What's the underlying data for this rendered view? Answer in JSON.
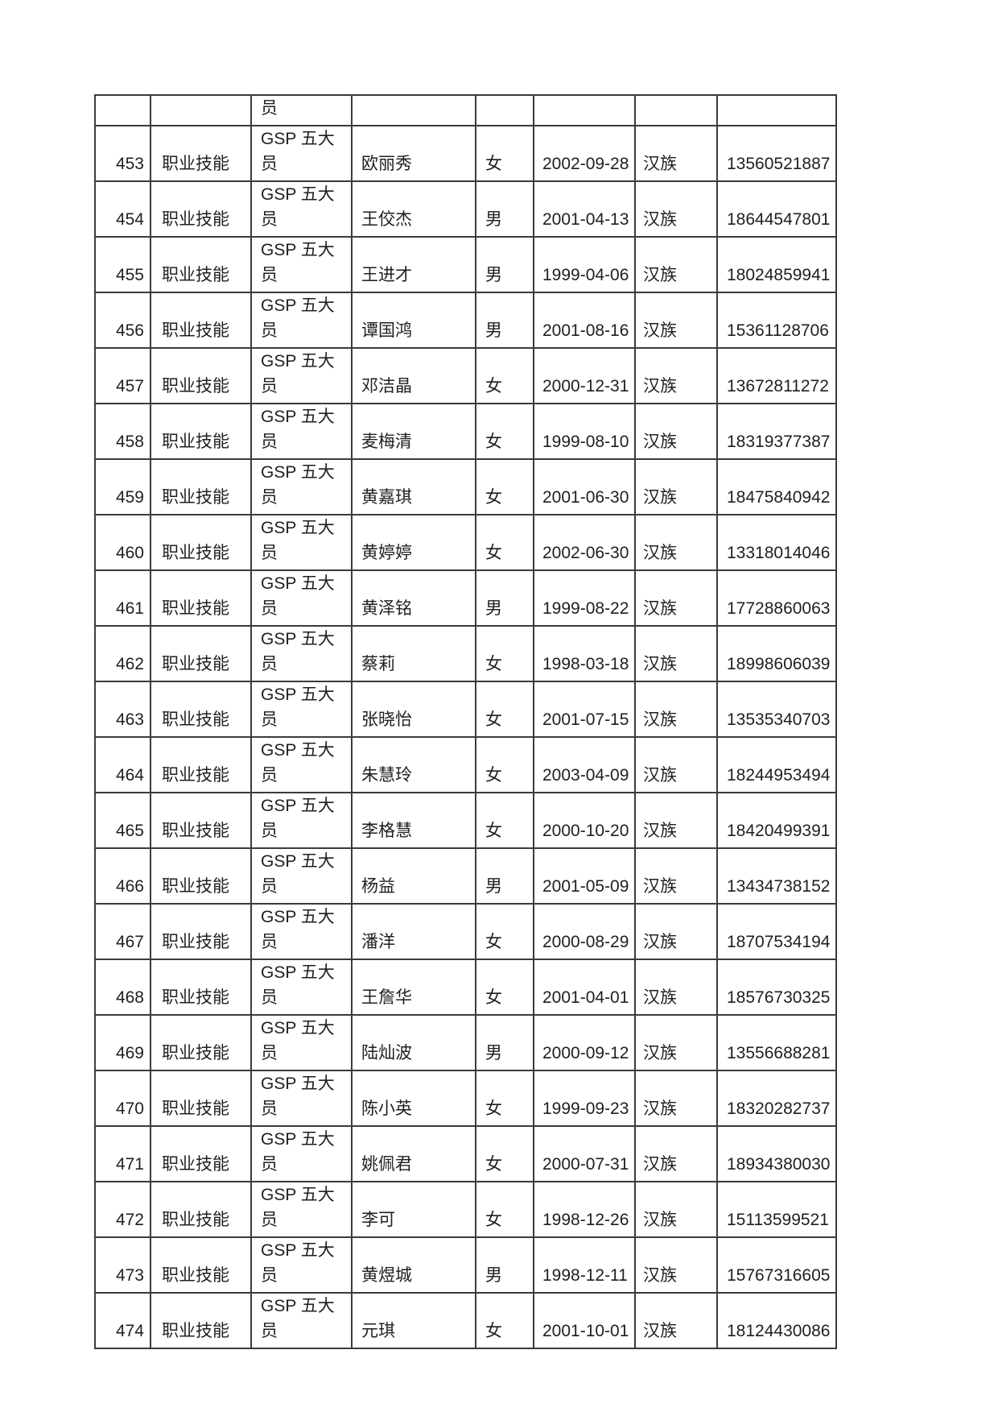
{
  "document": {
    "background_color": "#ffffff",
    "table_border_color": "#3b3b3b",
    "text_color": "#1f1f1f"
  },
  "table": {
    "carryover_row": {
      "cert_fragment": "员"
    },
    "rows": [
      {
        "no": "453",
        "category": "职业技能",
        "cert": "GSP 五大员",
        "name": "欧丽秀",
        "gender": "女",
        "birth_date": "2002-09-28",
        "ethnicity": "汉族",
        "phone": "13560521887"
      },
      {
        "no": "454",
        "category": "职业技能",
        "cert": "GSP 五大员",
        "name": "王佼杰",
        "gender": "男",
        "birth_date": "2001-04-13",
        "ethnicity": "汉族",
        "phone": "18644547801"
      },
      {
        "no": "455",
        "category": "职业技能",
        "cert": "GSP 五大员",
        "name": "王进才",
        "gender": "男",
        "birth_date": "1999-04-06",
        "ethnicity": "汉族",
        "phone": "18024859941"
      },
      {
        "no": "456",
        "category": "职业技能",
        "cert": "GSP 五大员",
        "name": "谭国鸿",
        "gender": "男",
        "birth_date": "2001-08-16",
        "ethnicity": "汉族",
        "phone": "15361128706"
      },
      {
        "no": "457",
        "category": "职业技能",
        "cert": "GSP 五大员",
        "name": "邓洁晶",
        "gender": "女",
        "birth_date": "2000-12-31",
        "ethnicity": "汉族",
        "phone": "13672811272"
      },
      {
        "no": "458",
        "category": "职业技能",
        "cert": "GSP 五大员",
        "name": "麦梅清",
        "gender": "女",
        "birth_date": "1999-08-10",
        "ethnicity": "汉族",
        "phone": "18319377387"
      },
      {
        "no": "459",
        "category": "职业技能",
        "cert": "GSP 五大员",
        "name": "黄嘉琪",
        "gender": "女",
        "birth_date": "2001-06-30",
        "ethnicity": "汉族",
        "phone": "18475840942"
      },
      {
        "no": "460",
        "category": "职业技能",
        "cert": "GSP 五大员",
        "name": "黄婷婷",
        "gender": "女",
        "birth_date": "2002-06-30",
        "ethnicity": "汉族",
        "phone": "13318014046"
      },
      {
        "no": "461",
        "category": "职业技能",
        "cert": "GSP 五大员",
        "name": "黄泽铭",
        "gender": "男",
        "birth_date": "1999-08-22",
        "ethnicity": "汉族",
        "phone": "17728860063"
      },
      {
        "no": "462",
        "category": "职业技能",
        "cert": "GSP 五大员",
        "name": "蔡莉",
        "gender": "女",
        "birth_date": "1998-03-18",
        "ethnicity": "汉族",
        "phone": "18998606039"
      },
      {
        "no": "463",
        "category": "职业技能",
        "cert": "GSP 五大员",
        "name": "张晓怡",
        "gender": "女",
        "birth_date": "2001-07-15",
        "ethnicity": "汉族",
        "phone": "13535340703"
      },
      {
        "no": "464",
        "category": "职业技能",
        "cert": "GSP 五大员",
        "name": "朱慧玲",
        "gender": "女",
        "birth_date": "2003-04-09",
        "ethnicity": "汉族",
        "phone": "18244953494"
      },
      {
        "no": "465",
        "category": "职业技能",
        "cert": "GSP 五大员",
        "name": "李格慧",
        "gender": "女",
        "birth_date": "2000-10-20",
        "ethnicity": "汉族",
        "phone": "18420499391"
      },
      {
        "no": "466",
        "category": "职业技能",
        "cert": "GSP 五大员",
        "name": "杨益",
        "gender": "男",
        "birth_date": "2001-05-09",
        "ethnicity": "汉族",
        "phone": "13434738152"
      },
      {
        "no": "467",
        "category": "职业技能",
        "cert": "GSP 五大员",
        "name": "潘洋",
        "gender": "女",
        "birth_date": "2000-08-29",
        "ethnicity": "汉族",
        "phone": "18707534194"
      },
      {
        "no": "468",
        "category": "职业技能",
        "cert": "GSP 五大员",
        "name": "王詹华",
        "gender": "女",
        "birth_date": "2001-04-01",
        "ethnicity": "汉族",
        "phone": "18576730325"
      },
      {
        "no": "469",
        "category": "职业技能",
        "cert": "GSP 五大员",
        "name": "陆灿波",
        "gender": "男",
        "birth_date": "2000-09-12",
        "ethnicity": "汉族",
        "phone": "13556688281"
      },
      {
        "no": "470",
        "category": "职业技能",
        "cert": "GSP 五大员",
        "name": "陈小英",
        "gender": "女",
        "birth_date": "1999-09-23",
        "ethnicity": "汉族",
        "phone": "18320282737"
      },
      {
        "no": "471",
        "category": "职业技能",
        "cert": "GSP 五大员",
        "name": "姚佩君",
        "gender": "女",
        "birth_date": "2000-07-31",
        "ethnicity": "汉族",
        "phone": "18934380030"
      },
      {
        "no": "472",
        "category": "职业技能",
        "cert": "GSP 五大员",
        "name": "李可",
        "gender": "女",
        "birth_date": "1998-12-26",
        "ethnicity": "汉族",
        "phone": "15113599521"
      },
      {
        "no": "473",
        "category": "职业技能",
        "cert": "GSP 五大员",
        "name": "黄煜城",
        "gender": "男",
        "birth_date": "1998-12-11",
        "ethnicity": "汉族",
        "phone": "15767316605"
      },
      {
        "no": "474",
        "category": "职业技能",
        "cert": "GSP 五大员",
        "name": "元琪",
        "gender": "女",
        "birth_date": "2001-10-01",
        "ethnicity": "汉族",
        "phone": "18124430086"
      }
    ]
  }
}
